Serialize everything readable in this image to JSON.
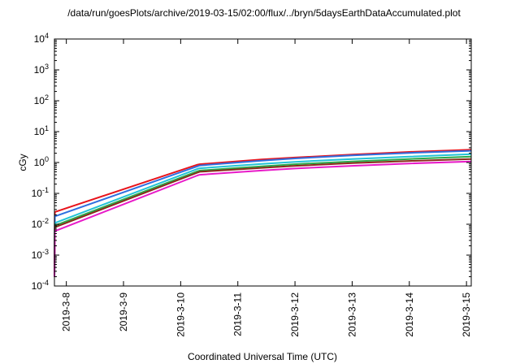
{
  "chart_data": {
    "type": "line",
    "title": "/data/run/goesPlots/archive/2019-03-15/02:00/flux/../bryn/5daysEarthDataAccumulated.plot",
    "xlabel": "Coordinated Universal Time (UTC)",
    "ylabel": "cGy",
    "y_scale": "log",
    "ylim": [
      0.0001,
      10000
    ],
    "xlim": [
      "2019-03-07 19:00",
      "2019-03-15 02:00"
    ],
    "y_ticks": [
      {
        "value": 0.0001,
        "base": "10",
        "exp": "-4"
      },
      {
        "value": 0.001,
        "base": "10",
        "exp": "-3"
      },
      {
        "value": 0.01,
        "base": "10",
        "exp": "-2"
      },
      {
        "value": 0.1,
        "base": "10",
        "exp": "-1"
      },
      {
        "value": 1,
        "base": "10",
        "exp": "0"
      },
      {
        "value": 10,
        "base": "10",
        "exp": "1"
      },
      {
        "value": 100,
        "base": "10",
        "exp": "2"
      },
      {
        "value": 1000,
        "base": "10",
        "exp": "3"
      },
      {
        "value": 10000,
        "base": "10",
        "exp": "4"
      }
    ],
    "x_ticks": [
      "2019-3-8",
      "2019-3-9",
      "2019-3-10",
      "2019-3-11",
      "2019-3-12",
      "2019-3-13",
      "2019-3-14",
      "2019-3-15"
    ],
    "grid": false,
    "legend": "none",
    "series": [
      {
        "color": "#e8141c",
        "points": [
          [
            "2019-03-07 19:00",
            0.0003
          ],
          [
            "2019-03-07 19:10",
            0.025
          ],
          [
            "2019-03-10 07:00",
            0.85
          ],
          [
            "2019-03-10 08:00",
            0.88
          ],
          [
            "2019-03-11 10:00",
            1.25
          ],
          [
            "2019-03-12 00:00",
            1.45
          ],
          [
            "2019-03-13 00:00",
            1.8
          ],
          [
            "2019-03-14 00:00",
            2.2
          ],
          [
            "2019-03-15 02:00",
            2.6
          ]
        ]
      },
      {
        "color": "#2f6fe0",
        "points": [
          [
            "2019-03-07 19:00",
            0.0002
          ],
          [
            "2019-03-07 19:10",
            0.018
          ],
          [
            "2019-03-10 07:00",
            0.75
          ],
          [
            "2019-03-10 08:00",
            0.8
          ],
          [
            "2019-03-11 10:00",
            1.15
          ],
          [
            "2019-03-12 00:00",
            1.35
          ],
          [
            "2019-03-13 00:00",
            1.7
          ],
          [
            "2019-03-14 00:00",
            2.05
          ],
          [
            "2019-03-15 02:00",
            2.4
          ]
        ]
      },
      {
        "color": "#22c3d6",
        "points": [
          [
            "2019-03-07 19:00",
            0.0002
          ],
          [
            "2019-03-07 19:10",
            0.011
          ],
          [
            "2019-03-10 07:00",
            0.62
          ],
          [
            "2019-03-10 08:00",
            0.65
          ],
          [
            "2019-03-11 10:00",
            0.9
          ],
          [
            "2019-03-12 00:00",
            1.05
          ],
          [
            "2019-03-13 00:00",
            1.3
          ],
          [
            "2019-03-14 00:00",
            1.55
          ],
          [
            "2019-03-15 02:00",
            1.85
          ]
        ]
      },
      {
        "color": "#2aa84a",
        "points": [
          [
            "2019-03-07 19:00",
            0.0002
          ],
          [
            "2019-03-07 19:10",
            0.009
          ],
          [
            "2019-03-10 07:00",
            0.52
          ],
          [
            "2019-03-10 08:00",
            0.55
          ],
          [
            "2019-03-11 10:00",
            0.75
          ],
          [
            "2019-03-12 00:00",
            0.88
          ],
          [
            "2019-03-13 00:00",
            1.08
          ],
          [
            "2019-03-14 00:00",
            1.3
          ],
          [
            "2019-03-15 02:00",
            1.55
          ]
        ]
      },
      {
        "color": "#8a2a1a",
        "points": [
          [
            "2019-03-07 19:00",
            0.0002
          ],
          [
            "2019-03-07 19:10",
            0.008
          ],
          [
            "2019-03-10 07:00",
            0.47
          ],
          [
            "2019-03-10 08:00",
            0.5
          ],
          [
            "2019-03-11 10:00",
            0.67
          ],
          [
            "2019-03-12 00:00",
            0.78
          ],
          [
            "2019-03-13 00:00",
            0.95
          ],
          [
            "2019-03-14 00:00",
            1.12
          ],
          [
            "2019-03-15 02:00",
            1.3
          ]
        ]
      },
      {
        "color": "#e81ac8",
        "points": [
          [
            "2019-03-07 19:00",
            0.0002
          ],
          [
            "2019-03-07 19:10",
            0.006
          ],
          [
            "2019-03-10 07:00",
            0.38
          ],
          [
            "2019-03-10 08:00",
            0.4
          ],
          [
            "2019-03-11 10:00",
            0.55
          ],
          [
            "2019-03-12 00:00",
            0.64
          ],
          [
            "2019-03-13 00:00",
            0.78
          ],
          [
            "2019-03-14 00:00",
            0.93
          ],
          [
            "2019-03-15 02:00",
            1.08
          ]
        ]
      }
    ]
  }
}
